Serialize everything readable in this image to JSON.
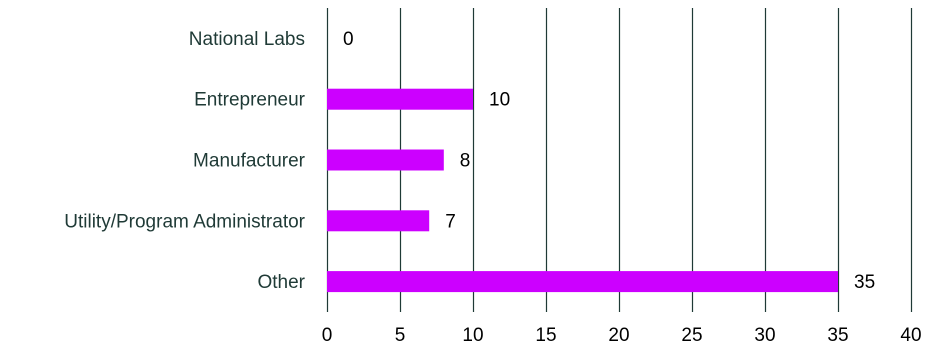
{
  "chart_data": {
    "type": "bar",
    "orientation": "horizontal",
    "categories": [
      "National Labs",
      "Entrepreneur",
      "Manufacturer",
      "Utility/Program Administrator",
      "Other"
    ],
    "values": [
      0,
      10,
      8,
      7,
      35
    ],
    "data_labels": [
      "0",
      "10",
      "8",
      "7",
      "35"
    ],
    "xlim": [
      0,
      40
    ],
    "x_ticks": [
      0,
      5,
      10,
      15,
      20,
      25,
      30,
      35,
      40
    ],
    "x_tick_labels": [
      "0",
      "5",
      "10",
      "15",
      "20",
      "25",
      "30",
      "35",
      "40"
    ],
    "title": "",
    "xlabel": "",
    "ylabel": "",
    "grid": "vertical",
    "legend": "none",
    "colors": {
      "bar": "#cc00ff",
      "gridline": "#1f3a36",
      "category_text": "#1f3a36",
      "value_text": "#000000",
      "tick_text": "#000000"
    }
  }
}
